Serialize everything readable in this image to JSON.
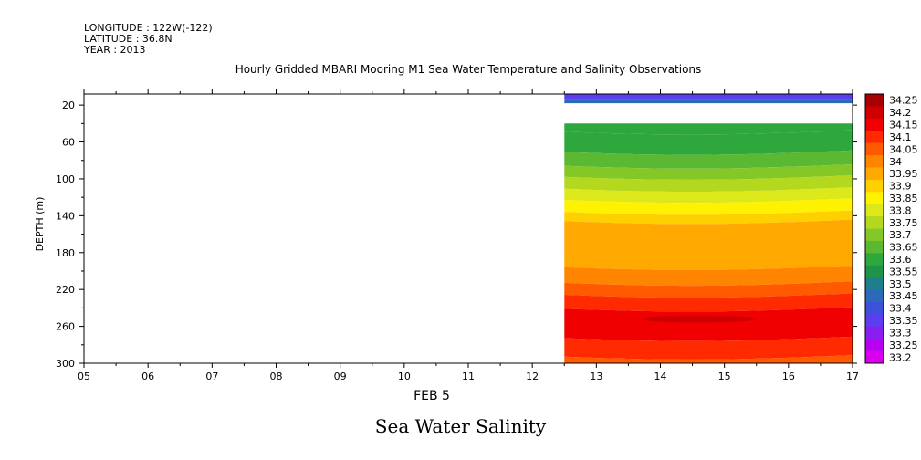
{
  "header": {
    "longitude": "LONGITUDE : 122W(-122)",
    "latitude": "LATITUDE : 36.8N",
    "year": "YEAR : 2013"
  },
  "footer_title": "Sea Water Salinity",
  "colors": {
    "levels": [
      "#d800ee",
      "#b800f0",
      "#8a1ef0",
      "#5a3ef0",
      "#3c50d8",
      "#2a6ab8",
      "#1e7e8c",
      "#1e9448",
      "#2ea83c",
      "#5ab832",
      "#84c828",
      "#b4d81e",
      "#dce81a",
      "#fff200",
      "#ffd000",
      "#ffa800",
      "#ff8400",
      "#ff5a00",
      "#ff2a00",
      "#f00000",
      "#d00000",
      "#a80000"
    ],
    "grid_line": "#000000"
  },
  "chart_data": {
    "type": "heatmap",
    "title": "Hourly Gridded MBARI Mooring M1 Sea Water Temperature and Salinity Observations",
    "xlabel": "FEB  5",
    "ylabel": "DEPTH (m)",
    "x_ticks": [
      "05",
      "06",
      "07",
      "08",
      "09",
      "10",
      "11",
      "12",
      "13",
      "14",
      "15",
      "16",
      "17"
    ],
    "x_range": [
      5,
      17
    ],
    "y_ticks": [
      "20",
      "60",
      "100",
      "140",
      "180",
      "220",
      "260",
      "300"
    ],
    "y_range": [
      8,
      300
    ],
    "y_reversed": true,
    "data_start_x": 12.5,
    "colorbar_levels": [
      "34.25",
      "34.2",
      "34.15",
      "34.1",
      "34.05",
      "34",
      "33.95",
      "33.9",
      "33.85",
      "33.8",
      "33.75",
      "33.7",
      "33.65",
      "33.6",
      "33.55",
      "33.5",
      "33.45",
      "33.4",
      "33.35",
      "33.3",
      "33.25",
      "33.2"
    ],
    "contour_bands": [
      {
        "depth_top": 8,
        "depth_bottom": 14,
        "salinity": 33.35
      },
      {
        "depth_top": 14,
        "depth_bottom": 18,
        "salinity": 33.47
      },
      {
        "depth_top": 40,
        "depth_bottom": 48,
        "salinity": 33.6
      },
      {
        "depth_top": 48,
        "depth_bottom": 70,
        "salinity": 33.62
      },
      {
        "depth_top": 70,
        "depth_bottom": 85,
        "salinity": 33.67
      },
      {
        "depth_top": 85,
        "depth_bottom": 97,
        "salinity": 33.72
      },
      {
        "depth_top": 97,
        "depth_bottom": 110,
        "salinity": 33.77
      },
      {
        "depth_top": 110,
        "depth_bottom": 122,
        "salinity": 33.82
      },
      {
        "depth_top": 122,
        "depth_bottom": 135,
        "salinity": 33.87
      },
      {
        "depth_top": 135,
        "depth_bottom": 145,
        "salinity": 33.92
      },
      {
        "depth_top": 145,
        "depth_bottom": 195,
        "salinity": 33.97
      },
      {
        "depth_top": 195,
        "depth_bottom": 212,
        "salinity": 34.02
      },
      {
        "depth_top": 212,
        "depth_bottom": 225,
        "salinity": 34.07
      },
      {
        "depth_top": 225,
        "depth_bottom": 240,
        "salinity": 34.12
      },
      {
        "depth_top": 240,
        "depth_bottom": 272,
        "salinity": 34.17
      },
      {
        "depth_top": 272,
        "depth_bottom": 292,
        "salinity": 34.12
      },
      {
        "depth_top": 292,
        "depth_bottom": 300,
        "salinity": 34.07
      }
    ],
    "core_max": {
      "x_center": 14.6,
      "depth": 252,
      "salinity": 34.22
    }
  }
}
